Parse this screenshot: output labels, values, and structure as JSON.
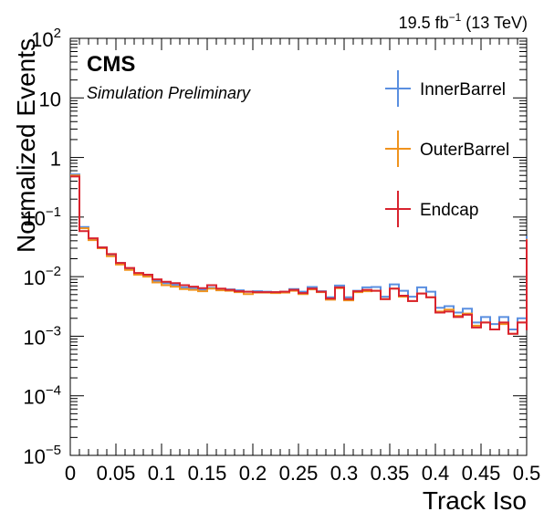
{
  "header": {
    "lumi_value": "19.5 fb",
    "lumi_exp": "−1",
    "lumi_energy": " (13 TeV)"
  },
  "labels": {
    "cms": "CMS",
    "sim": "Simulation Preliminary"
  },
  "chart_data": {
    "type": "line",
    "style": "step-histogram",
    "title": "",
    "xlabel": "Track Iso",
    "ylabel": "Normalized Events",
    "xlim": [
      0,
      0.5
    ],
    "ylim": [
      1e-05,
      100
    ],
    "yscale": "log",
    "grid": false,
    "legend": "top-right",
    "bin_width": 0.01,
    "x_ticks": [
      "0",
      "0.05",
      "0.1",
      "0.15",
      "0.2",
      "0.25",
      "0.3",
      "0.35",
      "0.4",
      "0.45",
      "0.5"
    ],
    "y_ticks": [
      {
        "base": "10",
        "exp": "−5"
      },
      {
        "base": "10",
        "exp": "−4"
      },
      {
        "base": "10",
        "exp": "−3"
      },
      {
        "base": "10",
        "exp": "−2"
      },
      {
        "base": "10",
        "exp": "−1"
      },
      {
        "base": "1",
        "exp": ""
      },
      {
        "base": "10",
        "exp": ""
      },
      {
        "base": "10",
        "exp": "2"
      }
    ],
    "series": [
      {
        "name": "InnerBarrel",
        "color": "#5a8fe0",
        "values": [
          0.52,
          0.068,
          0.042,
          0.031,
          0.023,
          0.017,
          0.0135,
          0.011,
          0.0105,
          0.0085,
          0.0078,
          0.0073,
          0.0066,
          0.0064,
          0.006,
          0.0065,
          0.0062,
          0.0061,
          0.0059,
          0.0056,
          0.0057,
          0.0056,
          0.0055,
          0.0056,
          0.0062,
          0.0056,
          0.0067,
          0.0057,
          0.0045,
          0.0071,
          0.0045,
          0.0058,
          0.0066,
          0.0067,
          0.0046,
          0.0074,
          0.0058,
          0.0046,
          0.0066,
          0.0056,
          0.003,
          0.0032,
          0.0025,
          0.0029,
          0.0017,
          0.0021,
          0.0016,
          0.0021,
          0.0013,
          0.002,
          0.048
        ]
      },
      {
        "name": "OuterBarrel",
        "color": "#f0931e",
        "values": [
          0.5,
          0.065,
          0.041,
          0.03,
          0.022,
          0.016,
          0.013,
          0.0108,
          0.01,
          0.008,
          0.0072,
          0.0068,
          0.0062,
          0.006,
          0.0057,
          0.0063,
          0.0059,
          0.0058,
          0.0055,
          0.0051,
          0.0054,
          0.0054,
          0.0053,
          0.0054,
          0.0058,
          0.0051,
          0.0061,
          0.0055,
          0.0041,
          0.0064,
          0.004,
          0.0055,
          0.0057,
          0.0058,
          0.0042,
          0.0063,
          0.0046,
          0.0039,
          0.0052,
          0.0045,
          0.0026,
          0.0028,
          0.0022,
          0.0024,
          0.0015,
          0.0017,
          0.0013,
          0.0016,
          0.0011,
          0.0017,
          0.043
        ]
      },
      {
        "name": "Endcap",
        "color": "#d9232e",
        "values": [
          0.48,
          0.058,
          0.044,
          0.031,
          0.024,
          0.017,
          0.014,
          0.0115,
          0.0108,
          0.009,
          0.0082,
          0.0078,
          0.0072,
          0.0068,
          0.0064,
          0.0072,
          0.0063,
          0.006,
          0.0057,
          0.0056,
          0.0055,
          0.0055,
          0.0055,
          0.0056,
          0.006,
          0.0053,
          0.0063,
          0.0056,
          0.0043,
          0.0066,
          0.0042,
          0.0057,
          0.006,
          0.0058,
          0.0042,
          0.0063,
          0.0048,
          0.0039,
          0.0052,
          0.0045,
          0.0025,
          0.0026,
          0.0021,
          0.0023,
          0.0014,
          0.0017,
          0.0013,
          0.0017,
          0.0011,
          0.0017,
          0.042
        ]
      }
    ]
  }
}
